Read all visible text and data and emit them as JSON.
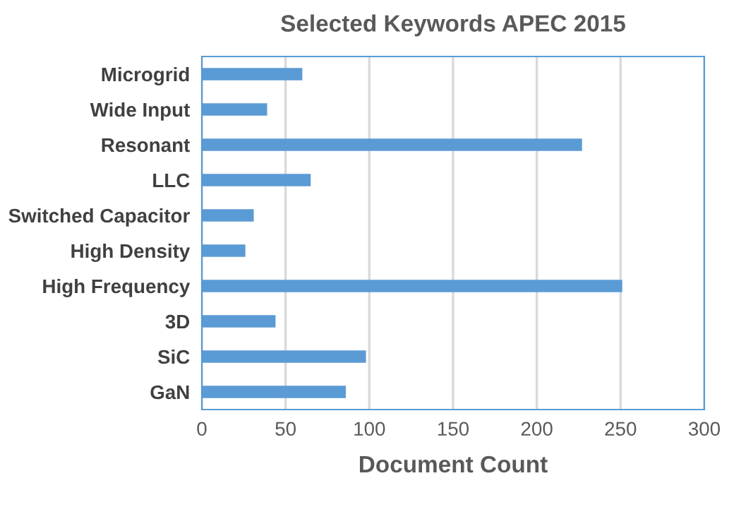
{
  "chart_data": {
    "type": "bar",
    "orientation": "horizontal",
    "title": "Selected Keywords APEC 2015",
    "xlabel": "Document Count",
    "categories": [
      "Microgrid",
      "Wide Input",
      "Resonant",
      "LLC",
      "Switched Capacitor",
      "High Density",
      "High Frequency",
      "3D",
      "SiC",
      "GaN"
    ],
    "values": [
      60,
      39,
      227,
      65,
      31,
      26,
      251,
      44,
      98,
      86
    ],
    "color": "#5b9bd5",
    "xlim": [
      0,
      300
    ],
    "xticks": [
      0,
      50,
      100,
      150,
      200,
      250,
      300
    ],
    "grid": "x",
    "legend": false
  }
}
